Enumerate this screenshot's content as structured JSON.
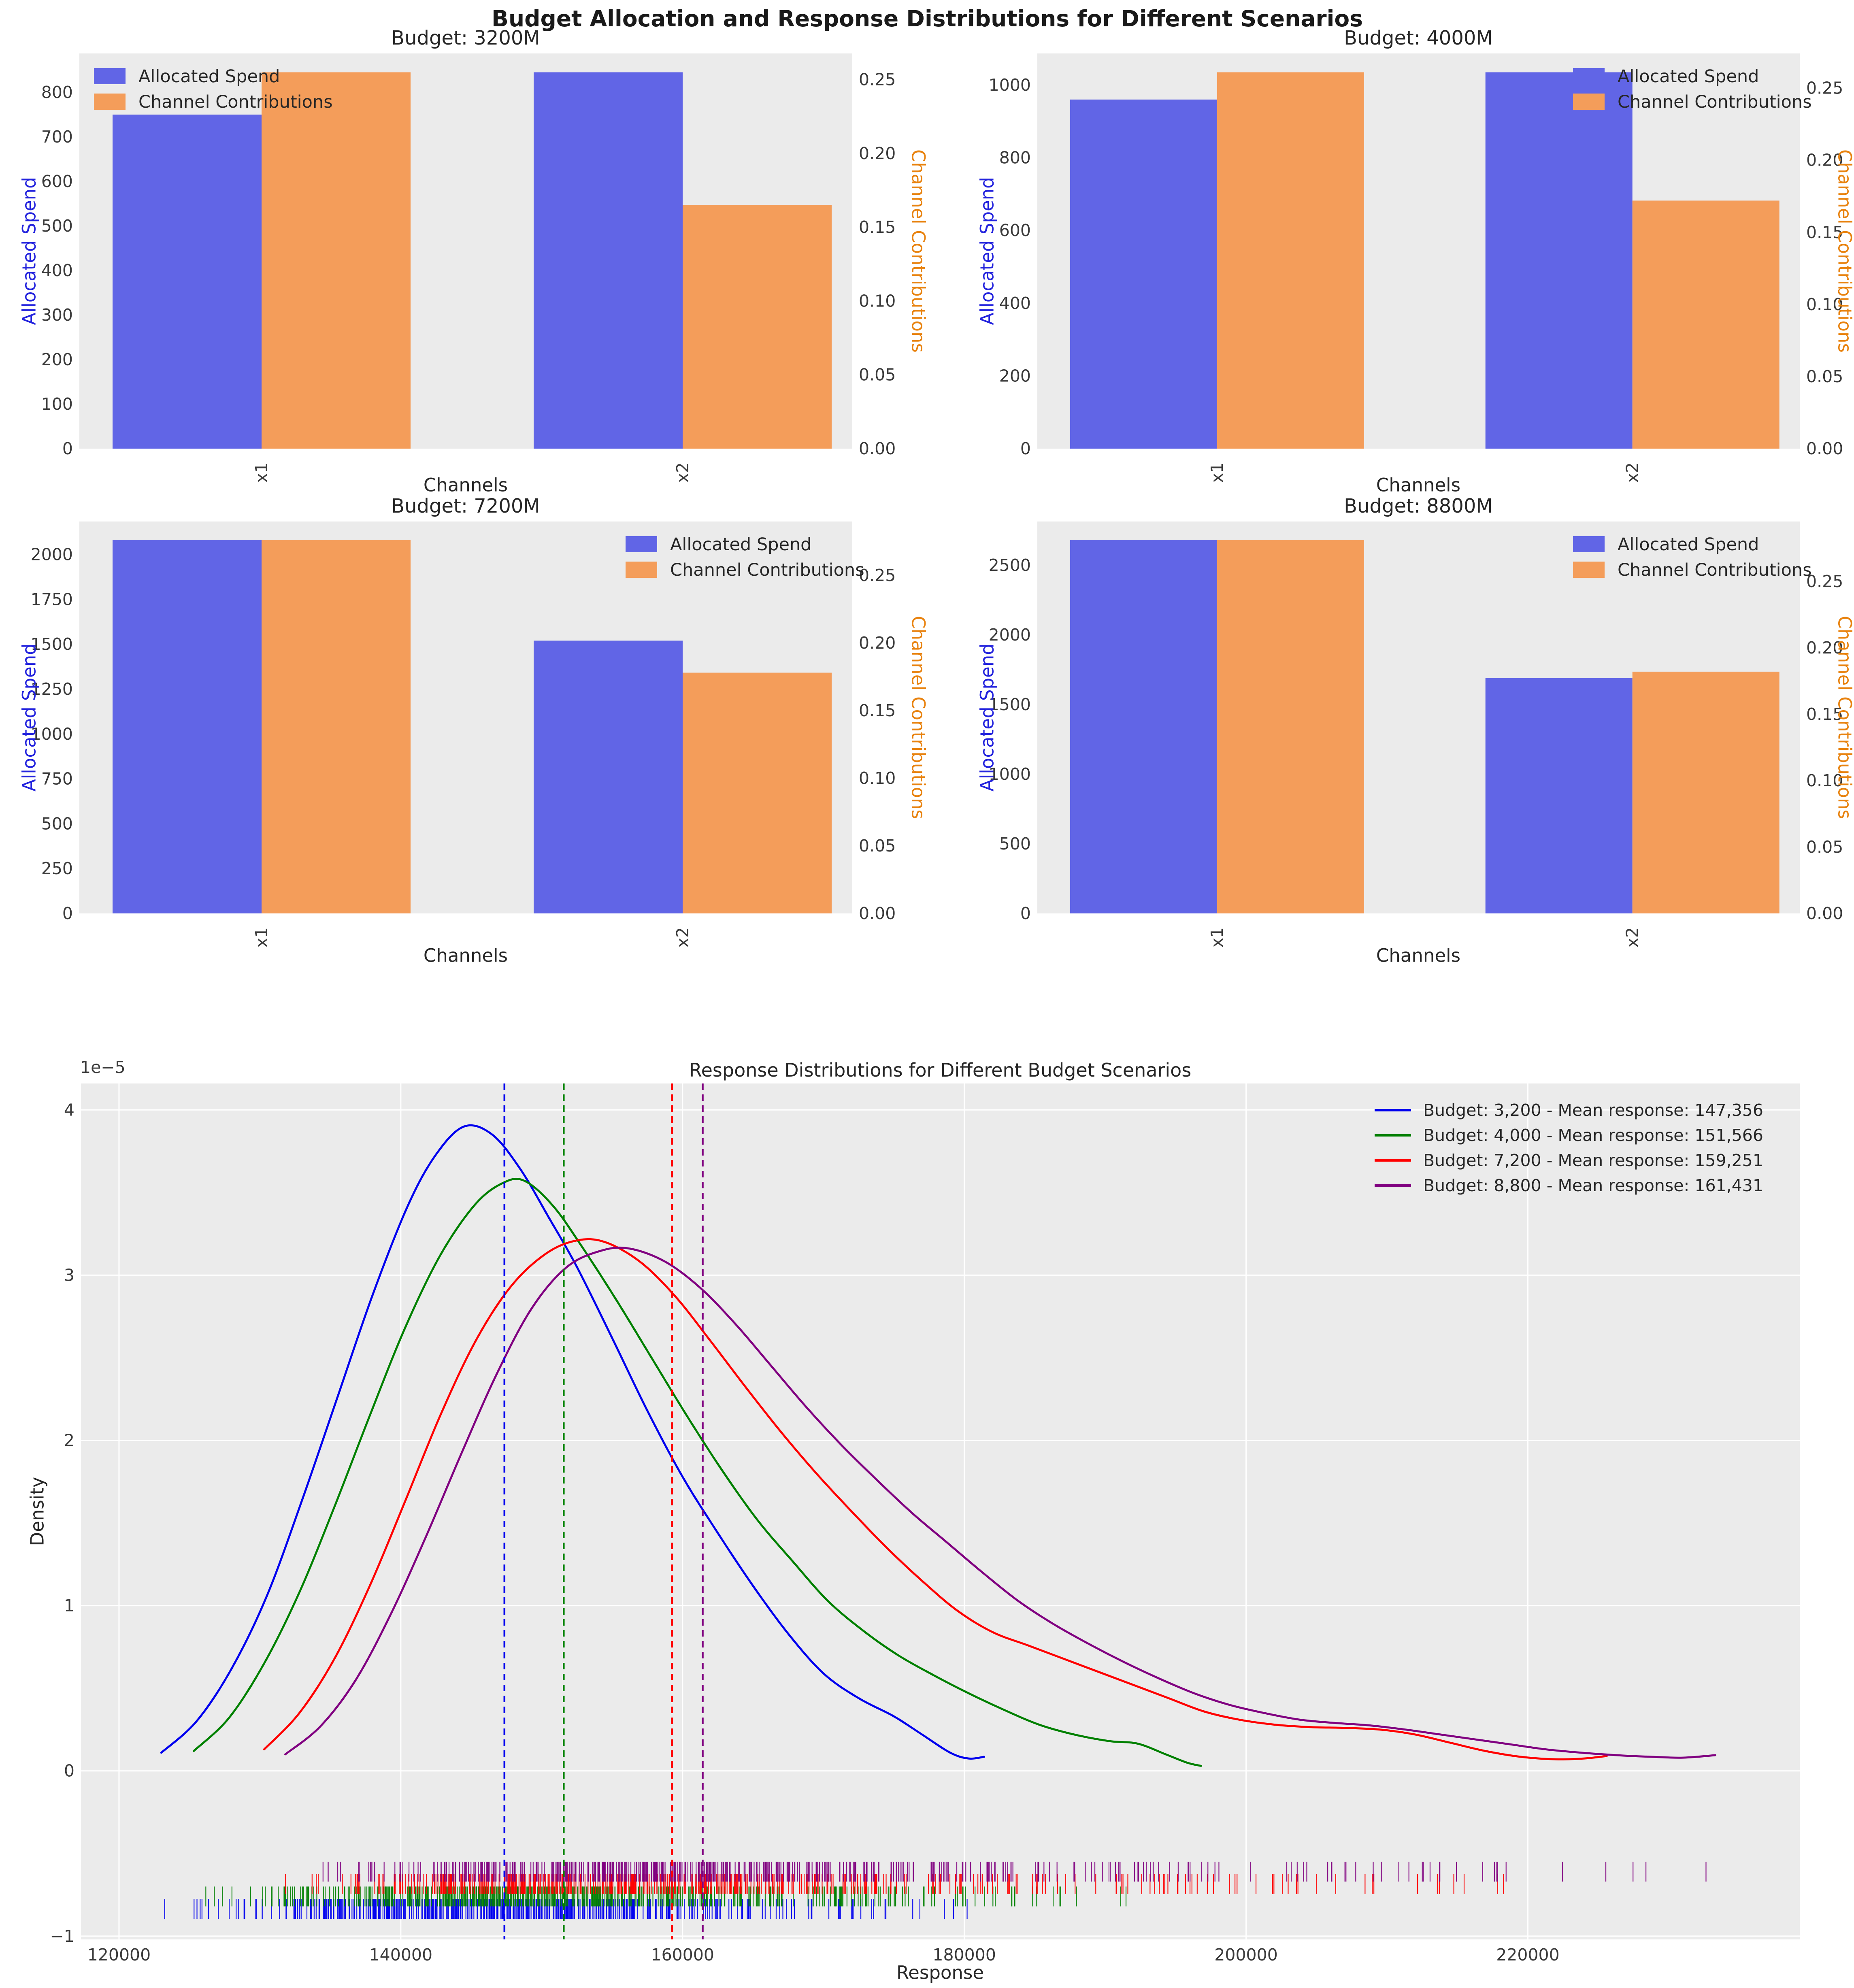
{
  "figure": {
    "suptitle": "Budget Allocation and Response Distributions for Different Scenarios",
    "axes_background": "#ebebeb",
    "grid_color": "#ffffff",
    "tick_color": "#3a3a3a",
    "spend_color": "#6165e6",
    "contribution_color": "#f49d5a"
  },
  "chart_data": [
    {
      "type": "bar",
      "title": "Budget: 3200M",
      "xlabel": "Channels",
      "ylabel_left": "Allocated Spend",
      "ylabel_right": "Channel Contributions",
      "categories": [
        "x1",
        "x2"
      ],
      "legend": [
        "Allocated Spend",
        "Channel Contributions"
      ],
      "legend_position": "upper-left",
      "left_ticks": [
        0,
        100,
        200,
        300,
        400,
        500,
        600,
        700,
        800
      ],
      "right_ticks": [
        0.0,
        0.05,
        0.1,
        0.15,
        0.2,
        0.25
      ],
      "series": [
        {
          "name": "Allocated Spend",
          "axis": "left",
          "values": [
            750,
            845
          ]
        },
        {
          "name": "Channel Contributions",
          "axis": "right",
          "values": [
            0.255,
            0.165
          ]
        }
      ]
    },
    {
      "type": "bar",
      "title": "Budget: 4000M",
      "xlabel": "Channels",
      "ylabel_left": "Allocated Spend",
      "ylabel_right": "Channel Contributions",
      "categories": [
        "x1",
        "x2"
      ],
      "legend": [
        "Allocated Spend",
        "Channel Contributions"
      ],
      "legend_position": "upper-right",
      "left_ticks": [
        0,
        200,
        400,
        600,
        800,
        1000
      ],
      "right_ticks": [
        0.0,
        0.05,
        0.1,
        0.15,
        0.2,
        0.25
      ],
      "series": [
        {
          "name": "Allocated Spend",
          "axis": "left",
          "values": [
            960,
            1035
          ]
        },
        {
          "name": "Channel Contributions",
          "axis": "right",
          "values": [
            0.261,
            0.172
          ]
        }
      ]
    },
    {
      "type": "bar",
      "title": "Budget: 7200M",
      "xlabel": "Channels",
      "ylabel_left": "Allocated Spend",
      "ylabel_right": "Channel Contributions",
      "categories": [
        "x1",
        "x2"
      ],
      "legend": [
        "Allocated Spend",
        "Channel Contributions"
      ],
      "legend_position": "upper-right",
      "left_ticks": [
        0,
        250,
        500,
        750,
        1000,
        1250,
        1500,
        1750,
        2000
      ],
      "right_ticks": [
        0.0,
        0.05,
        0.1,
        0.15,
        0.2,
        0.25
      ],
      "series": [
        {
          "name": "Allocated Spend",
          "axis": "left",
          "values": [
            2080,
            1520
          ]
        },
        {
          "name": "Channel Contributions",
          "axis": "right",
          "values": [
            0.276,
            0.178
          ]
        }
      ]
    },
    {
      "type": "bar",
      "title": "Budget: 8800M",
      "xlabel": "Channels",
      "ylabel_left": "Allocated Spend",
      "ylabel_right": "Channel Contributions",
      "categories": [
        "x1",
        "x2"
      ],
      "legend": [
        "Allocated Spend",
        "Channel Contributions"
      ],
      "legend_position": "upper-right",
      "left_ticks": [
        0,
        500,
        1000,
        1500,
        2000,
        2500
      ],
      "right_ticks": [
        0.0,
        0.05,
        0.1,
        0.15,
        0.2,
        0.25
      ],
      "series": [
        {
          "name": "Allocated Spend",
          "axis": "left",
          "values": [
            2680,
            1690
          ]
        },
        {
          "name": "Channel Contributions",
          "axis": "right",
          "values": [
            0.281,
            0.182
          ]
        }
      ]
    },
    {
      "type": "line",
      "title": "Response Distributions for Different Budget Scenarios",
      "xlabel": "Response",
      "ylabel": "Density",
      "offset_text": "1e−5",
      "xlim": [
        117300,
        239300
      ],
      "ylim": [
        -1.02,
        4.16
      ],
      "x_ticks": [
        120000,
        140000,
        160000,
        180000,
        200000,
        220000
      ],
      "y_ticks": [
        -1,
        0,
        1,
        2,
        3,
        4
      ],
      "legend_position": "upper-right",
      "series": [
        {
          "name": "Budget: 3,200 - Mean response: 147,356",
          "color": "#0000ee",
          "mean": 147356,
          "rug_count": 450,
          "rug_row": 3,
          "points": [
            [
              123000,
              0.11
            ],
            [
              125500,
              0.3
            ],
            [
              128000,
              0.62
            ],
            [
              130500,
              1.06
            ],
            [
              133000,
              1.64
            ],
            [
              135500,
              2.26
            ],
            [
              138000,
              2.88
            ],
            [
              140500,
              3.42
            ],
            [
              142500,
              3.73
            ],
            [
              144500,
              3.9
            ],
            [
              146500,
              3.85
            ],
            [
              148500,
              3.64
            ],
            [
              150500,
              3.35
            ],
            [
              152500,
              3.05
            ],
            [
              155000,
              2.62
            ],
            [
              157500,
              2.18
            ],
            [
              160000,
              1.78
            ],
            [
              162500,
              1.44
            ],
            [
              165000,
              1.12
            ],
            [
              167500,
              0.83
            ],
            [
              170000,
              0.59
            ],
            [
              172500,
              0.44
            ],
            [
              175000,
              0.33
            ],
            [
              177000,
              0.22
            ],
            [
              179000,
              0.11
            ],
            [
              180300,
              0.075
            ],
            [
              181400,
              0.085
            ]
          ]
        },
        {
          "name": "Budget: 4,000 - Mean response: 151,566",
          "color": "#008000",
          "mean": 151566,
          "rug_count": 450,
          "rug_row": 2,
          "points": [
            [
              125300,
              0.12
            ],
            [
              127800,
              0.32
            ],
            [
              130300,
              0.65
            ],
            [
              132800,
              1.08
            ],
            [
              135300,
              1.6
            ],
            [
              137800,
              2.15
            ],
            [
              140300,
              2.68
            ],
            [
              142800,
              3.12
            ],
            [
              145300,
              3.43
            ],
            [
              147300,
              3.56
            ],
            [
              148800,
              3.57
            ],
            [
              150800,
              3.42
            ],
            [
              152800,
              3.18
            ],
            [
              155300,
              2.85
            ],
            [
              157800,
              2.5
            ],
            [
              160300,
              2.15
            ],
            [
              162800,
              1.82
            ],
            [
              165300,
              1.52
            ],
            [
              167800,
              1.27
            ],
            [
              170300,
              1.03
            ],
            [
              172800,
              0.85
            ],
            [
              175300,
              0.7
            ],
            [
              177800,
              0.58
            ],
            [
              180300,
              0.47
            ],
            [
              182800,
              0.37
            ],
            [
              185300,
              0.28
            ],
            [
              187800,
              0.22
            ],
            [
              190300,
              0.18
            ],
            [
              192300,
              0.165
            ],
            [
              194300,
              0.1
            ],
            [
              195800,
              0.05
            ],
            [
              196800,
              0.03
            ]
          ]
        },
        {
          "name": "Budget: 7,200 - Mean response: 159,251",
          "color": "#ff0000",
          "mean": 159251,
          "rug_count": 450,
          "rug_row": 1,
          "points": [
            [
              130300,
              0.13
            ],
            [
              132800,
              0.35
            ],
            [
              135300,
              0.68
            ],
            [
              137800,
              1.12
            ],
            [
              140300,
              1.63
            ],
            [
              142800,
              2.15
            ],
            [
              145300,
              2.6
            ],
            [
              147800,
              2.93
            ],
            [
              150300,
              3.13
            ],
            [
              152500,
              3.21
            ],
            [
              154500,
              3.2
            ],
            [
              157000,
              3.08
            ],
            [
              159500,
              2.87
            ],
            [
              162000,
              2.6
            ],
            [
              164500,
              2.32
            ],
            [
              167000,
              2.05
            ],
            [
              169500,
              1.8
            ],
            [
              172000,
              1.57
            ],
            [
              174500,
              1.35
            ],
            [
              177000,
              1.15
            ],
            [
              179500,
              0.97
            ],
            [
              182000,
              0.84
            ],
            [
              184500,
              0.76
            ],
            [
              187000,
              0.68
            ],
            [
              189500,
              0.6
            ],
            [
              192000,
              0.52
            ],
            [
              194500,
              0.44
            ],
            [
              197000,
              0.36
            ],
            [
              199500,
              0.31
            ],
            [
              202000,
              0.28
            ],
            [
              204500,
              0.265
            ],
            [
              207000,
              0.26
            ],
            [
              209500,
              0.25
            ],
            [
              212000,
              0.22
            ],
            [
              214500,
              0.17
            ],
            [
              217000,
              0.12
            ],
            [
              219500,
              0.085
            ],
            [
              222000,
              0.07
            ],
            [
              224000,
              0.075
            ],
            [
              225600,
              0.09
            ]
          ]
        },
        {
          "name": "Budget: 8,800 - Mean response: 161,431",
          "color": "#800080",
          "mean": 161431,
          "rug_count": 450,
          "rug_row": 0,
          "points": [
            [
              131800,
              0.1
            ],
            [
              134300,
              0.27
            ],
            [
              136800,
              0.55
            ],
            [
              139300,
              0.95
            ],
            [
              141800,
              1.42
            ],
            [
              144300,
              1.92
            ],
            [
              146800,
              2.4
            ],
            [
              149300,
              2.8
            ],
            [
              151800,
              3.05
            ],
            [
              154300,
              3.15
            ],
            [
              156300,
              3.16
            ],
            [
              158800,
              3.08
            ],
            [
              161300,
              2.92
            ],
            [
              163800,
              2.7
            ],
            [
              166300,
              2.45
            ],
            [
              168800,
              2.2
            ],
            [
              171300,
              1.97
            ],
            [
              173800,
              1.76
            ],
            [
              176300,
              1.56
            ],
            [
              178800,
              1.38
            ],
            [
              181300,
              1.2
            ],
            [
              183800,
              1.03
            ],
            [
              186300,
              0.89
            ],
            [
              188800,
              0.77
            ],
            [
              191300,
              0.66
            ],
            [
              193800,
              0.56
            ],
            [
              196300,
              0.47
            ],
            [
              198800,
              0.4
            ],
            [
              201300,
              0.35
            ],
            [
              203800,
              0.31
            ],
            [
              206300,
              0.29
            ],
            [
              208800,
              0.275
            ],
            [
              211300,
              0.25
            ],
            [
              213800,
              0.22
            ],
            [
              216300,
              0.19
            ],
            [
              218800,
              0.16
            ],
            [
              221300,
              0.13
            ],
            [
              223800,
              0.11
            ],
            [
              226300,
              0.095
            ],
            [
              228800,
              0.085
            ],
            [
              231000,
              0.08
            ],
            [
              233300,
              0.095
            ]
          ]
        }
      ]
    }
  ]
}
